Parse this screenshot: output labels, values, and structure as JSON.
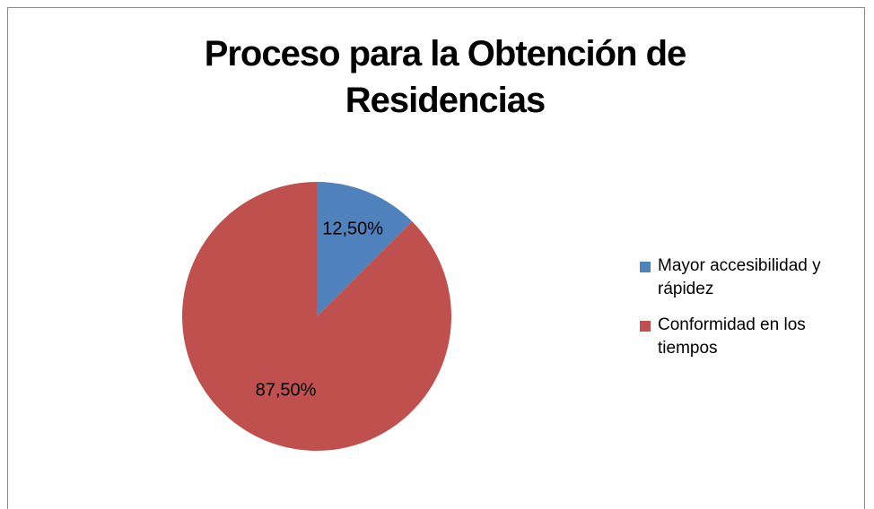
{
  "chart_data": {
    "type": "pie",
    "title": "Proceso para la Obtención de Residencias",
    "categories": [
      "Mayor accesibilidad y rápidez",
      "Conformidad en los tiempos"
    ],
    "values": [
      12.5,
      87.5
    ],
    "value_labels": [
      "12,50%",
      "87,50%"
    ],
    "colors": [
      "#4f81bd",
      "#c0504d"
    ],
    "legend": "right"
  }
}
